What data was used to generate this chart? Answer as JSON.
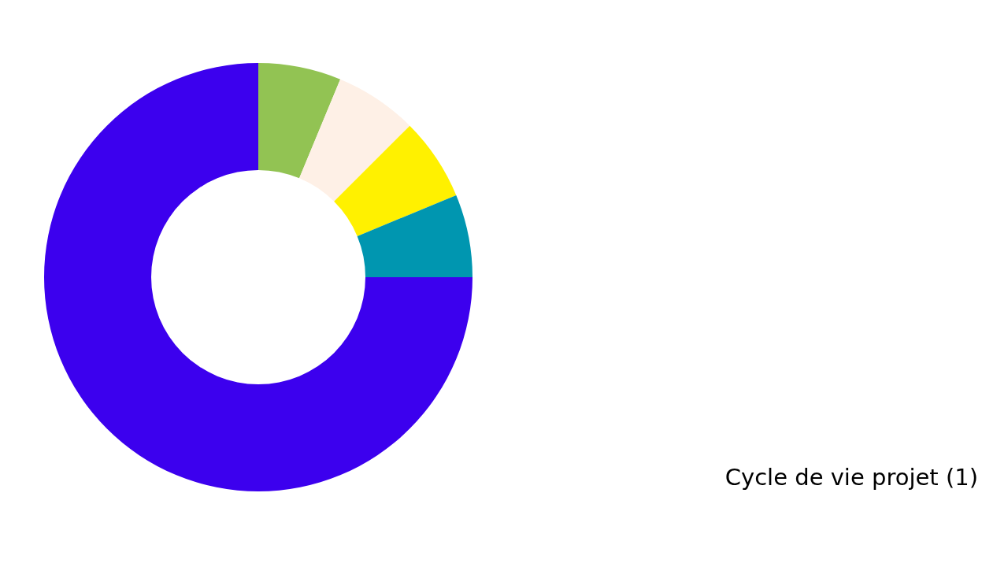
{
  "chart_data": {
    "type": "donut",
    "title": "Cycle de vie  projet (1)",
    "categories": [
      null,
      null,
      null,
      null,
      null
    ],
    "values": [
      6.25,
      6.25,
      6.25,
      6.25,
      75
    ],
    "colors": [
      "#92c353",
      "#fef0e6",
      "#fff100",
      "#0096b0",
      "#3c00ee"
    ]
  }
}
